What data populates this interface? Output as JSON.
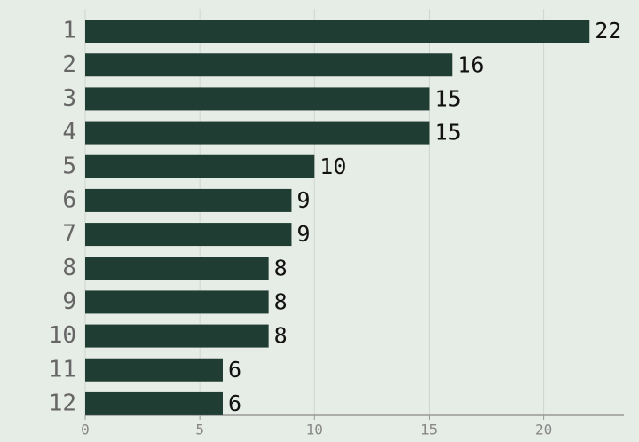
{
  "chart_data": {
    "type": "hbar",
    "categories": [
      "1",
      "2",
      "3",
      "4",
      "5",
      "6",
      "7",
      "8",
      "9",
      "10",
      "11",
      "12"
    ],
    "values": [
      22,
      16,
      15,
      15,
      10,
      9,
      9,
      8,
      8,
      8,
      6,
      6
    ],
    "color": "#1f3d33",
    "xlim": [
      0,
      23.5
    ],
    "xticks": [
      0,
      5,
      10,
      15,
      20
    ],
    "grid": true
  }
}
